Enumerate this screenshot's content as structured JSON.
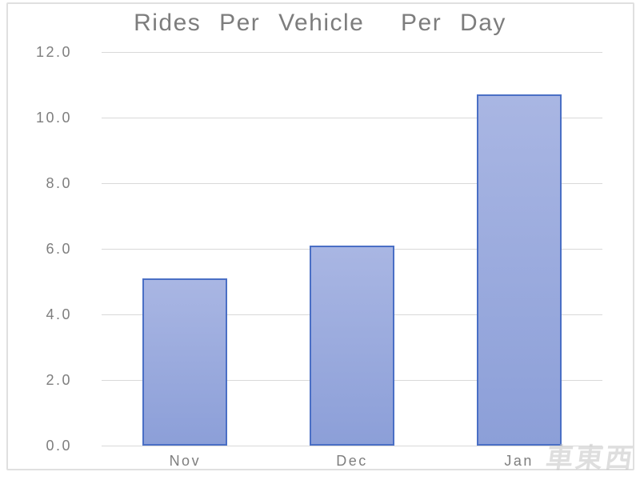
{
  "chart_data": {
    "type": "bar",
    "title": "Rides Per Vehicle  Per Day",
    "categories": [
      "Nov",
      "Dec",
      "Jan"
    ],
    "values": [
      5.1,
      6.1,
      10.7
    ],
    "xlabel": "",
    "ylabel": "",
    "ylim": [
      0,
      12
    ],
    "ytick_step": 2,
    "ytick_labels": [
      "0.0",
      "2.0",
      "4.0",
      "6.0",
      "8.0",
      "10.0",
      "12.0"
    ],
    "grid": true,
    "legend": "none"
  },
  "colors": {
    "title_text": "#7d7d7d",
    "axis_text": "#7e7e7e",
    "gridline": "#d9d9d9",
    "frame_border": "#e0e0e0",
    "bar_fill_top": "#a9b6e3",
    "bar_fill_bottom": "#8c9fd8",
    "bar_border": "#4a6fc5"
  },
  "watermark": {
    "text": "車東西"
  }
}
